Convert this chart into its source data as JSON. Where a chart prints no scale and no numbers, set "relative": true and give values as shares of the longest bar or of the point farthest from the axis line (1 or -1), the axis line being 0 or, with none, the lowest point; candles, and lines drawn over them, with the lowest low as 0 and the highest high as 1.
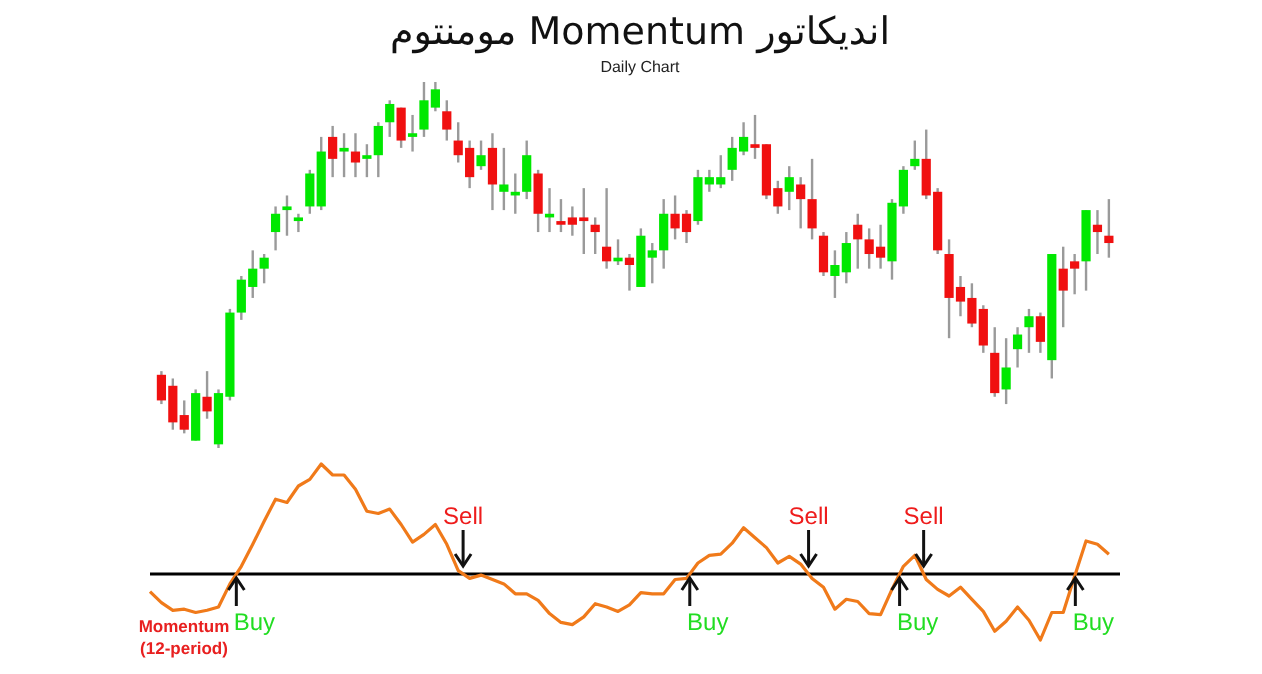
{
  "chart_data": [
    {
      "type": "candlestick",
      "title": "اندیکاتور Momentum مومنتوم",
      "subtitle": "Daily Chart",
      "relative": true,
      "categories": [
        null,
        null,
        null,
        null,
        null,
        null,
        null,
        null,
        null,
        null,
        null,
        null,
        null,
        null,
        null,
        null,
        null,
        null,
        null,
        null,
        null,
        null,
        null,
        null,
        null,
        null,
        null,
        null,
        null,
        null,
        null,
        null,
        null,
        null,
        null,
        null,
        null,
        null,
        null,
        null,
        null,
        null,
        null,
        null,
        null,
        null,
        null,
        null,
        null,
        null,
        null,
        null,
        null,
        null,
        null,
        null,
        null,
        null,
        null,
        null,
        null,
        null,
        null,
        null,
        null,
        null,
        null,
        null,
        null,
        null,
        null,
        null,
        null,
        null,
        null,
        null,
        null,
        null,
        null,
        null,
        null,
        null,
        null,
        null
      ],
      "ohlc": [
        [
          0.2,
          0.21,
          0.12,
          0.13
        ],
        [
          0.17,
          0.19,
          0.05,
          0.07
        ],
        [
          0.09,
          0.13,
          0.04,
          0.05
        ],
        [
          0.02,
          0.16,
          0.02,
          0.15
        ],
        [
          0.14,
          0.21,
          0.08,
          0.1
        ],
        [
          0.01,
          0.16,
          0,
          0.15
        ],
        [
          0.14,
          0.38,
          0.13,
          0.37
        ],
        [
          0.37,
          0.47,
          0.35,
          0.46
        ],
        [
          0.44,
          0.54,
          0.41,
          0.49
        ],
        [
          0.49,
          0.53,
          0.45,
          0.52
        ],
        [
          0.59,
          0.66,
          0.54,
          0.64
        ],
        [
          0.65,
          0.69,
          0.58,
          0.66
        ],
        [
          0.62,
          0.64,
          0.59,
          0.63
        ],
        [
          0.66,
          0.76,
          0.64,
          0.75
        ],
        [
          0.66,
          0.85,
          0.65,
          0.81
        ],
        [
          0.85,
          0.88,
          0.74,
          0.79
        ],
        [
          0.81,
          0.86,
          0.74,
          0.82
        ],
        [
          0.81,
          0.86,
          0.74,
          0.78
        ],
        [
          0.79,
          0.83,
          0.74,
          0.8
        ],
        [
          0.8,
          0.89,
          0.74,
          0.88
        ],
        [
          0.89,
          0.95,
          0.85,
          0.94
        ],
        [
          0.93,
          0.93,
          0.82,
          0.84
        ],
        [
          0.85,
          0.91,
          0.81,
          0.86
        ],
        [
          0.87,
          1.0,
          0.85,
          0.95
        ],
        [
          0.93,
          1.0,
          0.92,
          0.98
        ],
        [
          0.92,
          0.95,
          0.84,
          0.87
        ],
        [
          0.84,
          0.89,
          0.78,
          0.8
        ],
        [
          0.82,
          0.84,
          0.71,
          0.74
        ],
        [
          0.77,
          0.84,
          0.76,
          0.8
        ],
        [
          0.82,
          0.86,
          0.65,
          0.72
        ],
        [
          0.7,
          0.82,
          0.65,
          0.72
        ],
        [
          0.69,
          0.75,
          0.64,
          0.7
        ],
        [
          0.7,
          0.84,
          0.68,
          0.8
        ],
        [
          0.75,
          0.76,
          0.59,
          0.64
        ],
        [
          0.63,
          0.71,
          0.59,
          0.64
        ],
        [
          0.62,
          0.68,
          0.59,
          0.61
        ],
        [
          0.63,
          0.66,
          0.58,
          0.61
        ],
        [
          0.63,
          0.71,
          0.53,
          0.62
        ],
        [
          0.61,
          0.63,
          0.53,
          0.59
        ],
        [
          0.55,
          0.71,
          0.49,
          0.51
        ],
        [
          0.51,
          0.57,
          0.5,
          0.52
        ],
        [
          0.52,
          0.53,
          0.43,
          0.5
        ],
        [
          0.44,
          0.6,
          0.44,
          0.58
        ],
        [
          0.52,
          0.56,
          0.45,
          0.54
        ],
        [
          0.54,
          0.68,
          0.49,
          0.64
        ],
        [
          0.64,
          0.69,
          0.57,
          0.6
        ],
        [
          0.64,
          0.65,
          0.56,
          0.59
        ],
        [
          0.62,
          0.76,
          0.61,
          0.74
        ],
        [
          0.72,
          0.76,
          0.7,
          0.74
        ],
        [
          0.72,
          0.8,
          0.71,
          0.74
        ],
        [
          0.76,
          0.85,
          0.73,
          0.82
        ],
        [
          0.81,
          0.89,
          0.8,
          0.85
        ],
        [
          0.83,
          0.91,
          0.79,
          0.82
        ],
        [
          0.83,
          0.83,
          0.68,
          0.69
        ],
        [
          0.71,
          0.73,
          0.64,
          0.66
        ],
        [
          0.7,
          0.77,
          0.65,
          0.74
        ],
        [
          0.72,
          0.74,
          0.6,
          0.68
        ],
        [
          0.68,
          0.79,
          0.57,
          0.6
        ],
        [
          0.58,
          0.59,
          0.47,
          0.48
        ],
        [
          0.47,
          0.54,
          0.41,
          0.5
        ],
        [
          0.48,
          0.59,
          0.45,
          0.56
        ],
        [
          0.61,
          0.64,
          0.49,
          0.57
        ],
        [
          0.57,
          0.6,
          0.49,
          0.53
        ],
        [
          0.55,
          0.61,
          0.49,
          0.52
        ],
        [
          0.51,
          0.68,
          0.46,
          0.67
        ],
        [
          0.66,
          0.77,
          0.64,
          0.76
        ],
        [
          0.77,
          0.84,
          0.76,
          0.79
        ],
        [
          0.79,
          0.87,
          0.68,
          0.69
        ],
        [
          0.7,
          0.71,
          0.53,
          0.54
        ],
        [
          0.53,
          0.57,
          0.3,
          0.41
        ],
        [
          0.44,
          0.47,
          0.36,
          0.4
        ],
        [
          0.41,
          0.45,
          0.33,
          0.34
        ],
        [
          0.38,
          0.39,
          0.26,
          0.28
        ],
        [
          0.26,
          0.33,
          0.14,
          0.15
        ],
        [
          0.16,
          0.3,
          0.12,
          0.22
        ],
        [
          0.27,
          0.33,
          0.22,
          0.31
        ],
        [
          0.33,
          0.38,
          0.26,
          0.36
        ],
        [
          0.36,
          0.37,
          0.26,
          0.29
        ],
        [
          0.24,
          0.53,
          0.19,
          0.53
        ],
        [
          0.49,
          0.55,
          0.33,
          0.43
        ],
        [
          0.51,
          0.53,
          0.42,
          0.49
        ],
        [
          0.51,
          0.65,
          0.43,
          0.65
        ],
        [
          0.61,
          0.65,
          0.53,
          0.59
        ],
        [
          0.58,
          0.68,
          0.52,
          0.56
        ]
      ],
      "colors": [
        "#f01010",
        "#f01010",
        "#f01010",
        "#00e800",
        "#f01010",
        "#00e800",
        "#00e800",
        "#00e800",
        "#00e800",
        "#00e800",
        "#00e800",
        "#00e800",
        "#00e800",
        "#00e800",
        "#00e800",
        "#f01010",
        "#00e800",
        "#f01010",
        "#00e800",
        "#00e800",
        "#00e800",
        "#f01010",
        "#00e800",
        "#00e800",
        "#00e800",
        "#f01010",
        "#f01010",
        "#f01010",
        "#00e800",
        "#f01010",
        "#00e800",
        "#00e800",
        "#00e800",
        "#f01010",
        "#00e800",
        "#f01010",
        "#f01010",
        "#f01010",
        "#f01010",
        "#f01010",
        "#00e800",
        "#f01010",
        "#00e800",
        "#00e800",
        "#00e800",
        "#f01010",
        "#f01010",
        "#00e800",
        "#00e800",
        "#00e800",
        "#00e800",
        "#00e800",
        "#f01010",
        "#f01010",
        "#f01010",
        "#00e800",
        "#f01010",
        "#f01010",
        "#f01010",
        "#00e800",
        "#00e800",
        "#f01010",
        "#f01010",
        "#f01010",
        "#00e800",
        "#00e800",
        "#00e800",
        "#f01010",
        "#f01010",
        "#f01010",
        "#f01010",
        "#f01010",
        "#f01010",
        "#f01010",
        "#00e800",
        "#00e800",
        "#00e800",
        "#f01010",
        "#00e800",
        "#f01010",
        "#f01010",
        "#00e800",
        "#f01010",
        "#f01010"
      ]
    },
    {
      "type": "line",
      "relative": true,
      "categories": [
        null,
        null,
        null,
        null,
        null,
        null,
        null,
        null,
        null,
        null,
        null,
        null,
        null,
        null,
        null,
        null,
        null,
        null,
        null,
        null,
        null,
        null,
        null,
        null,
        null,
        null,
        null,
        null,
        null,
        null,
        null,
        null,
        null,
        null,
        null,
        null,
        null,
        null,
        null,
        null,
        null,
        null,
        null,
        null,
        null,
        null,
        null,
        null,
        null,
        null,
        null,
        null,
        null,
        null,
        null,
        null,
        null,
        null,
        null,
        null,
        null,
        null,
        null,
        null,
        null,
        null,
        null,
        null,
        null,
        null,
        null,
        null,
        null,
        null,
        null,
        null,
        null,
        null,
        null,
        null,
        null,
        null,
        null,
        null,
        null
      ],
      "series": [
        {
          "color": "#f07a1a",
          "values": [
            -0.16,
            -0.26,
            -0.33,
            -0.32,
            -0.35,
            -0.33,
            -0.3,
            -0.09,
            0.07,
            0.27,
            0.48,
            0.68,
            0.65,
            0.8,
            0.86,
            1.0,
            0.9,
            0.9,
            0.77,
            0.57,
            0.55,
            0.59,
            0.45,
            0.29,
            0.36,
            0.45,
            0.27,
            0.03,
            -0.04,
            -0.01,
            -0.05,
            -0.09,
            -0.18,
            -0.18,
            -0.24,
            -0.36,
            -0.44,
            -0.46,
            -0.39,
            -0.27,
            -0.3,
            -0.34,
            -0.28,
            -0.17,
            -0.18,
            -0.18,
            -0.05,
            -0.04,
            0.1,
            0.17,
            0.18,
            0.28,
            0.42,
            0.33,
            0.24,
            0.1,
            0.16,
            0.09,
            -0.04,
            -0.12,
            -0.32,
            -0.23,
            -0.25,
            -0.36,
            -0.37,
            -0.14,
            0.07,
            0.17,
            -0.05,
            -0.14,
            -0.2,
            -0.12,
            -0.23,
            -0.34,
            -0.52,
            -0.43,
            -0.3,
            -0.42,
            -0.6,
            -0.35,
            -0.35,
            -0.02,
            0.3,
            0.27,
            0.18
          ]
        }
      ],
      "annotations": [
        "Buy",
        "Sell",
        "Buy",
        "Sell",
        "Buy",
        "Sell",
        "Buy",
        "Momentum\n(12-period)"
      ]
    }
  ]
}
